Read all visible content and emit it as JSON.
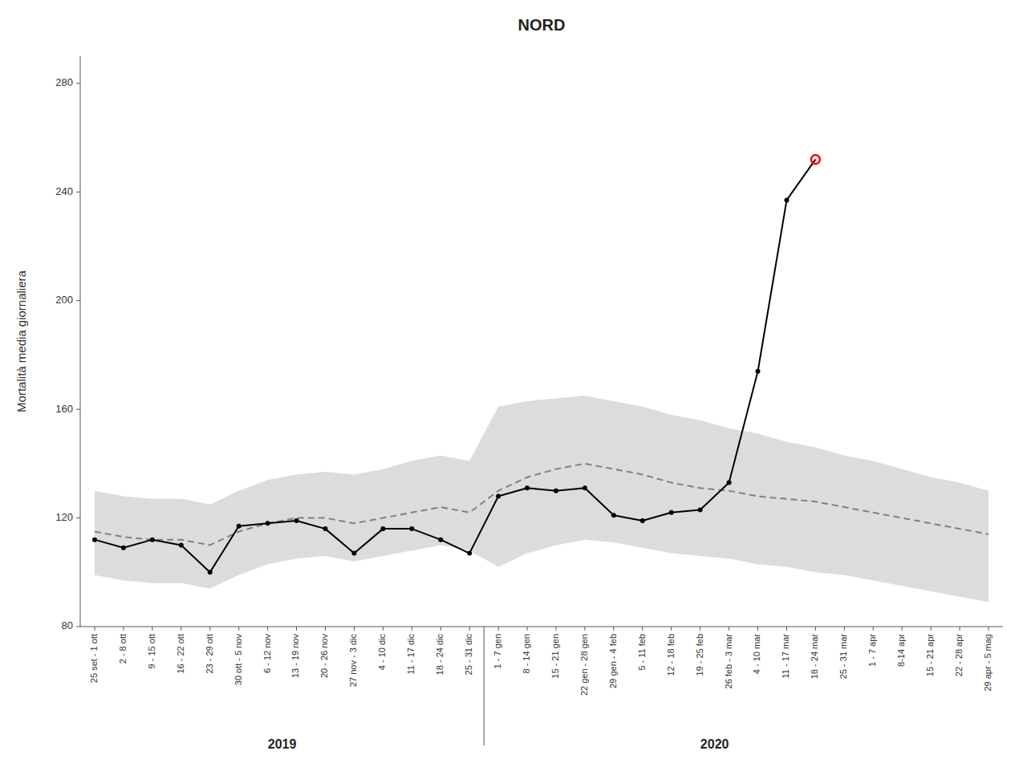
{
  "chart_data": {
    "type": "line",
    "title": "NORD",
    "y_label": "Mortalità media giornaliera",
    "categories": [
      "25 set - 1 ott",
      "2 - 8 ott",
      "9 - 15 ott",
      "16 - 22 ott",
      "23 - 29 ott",
      "30 ott - 5 nov",
      "6 - 12 nov",
      "13 - 19 nov",
      "20 - 26 nov",
      "27 nov - 3 dic",
      "4 - 10 dic",
      "11 - 17 dic",
      "18 - 24 dic",
      "25 - 31 dic",
      "1 - 7 gen",
      "8 - 14 gen",
      "15 - 21 gen",
      "22 gen - 28 gen",
      "29 gen - 4 feb",
      "5 - 11 feb",
      "12 - 18 feb",
      "19 - 25 feb",
      "26 feb - 3 mar",
      "4 - 10 mar",
      "11 - 17 mar",
      "18 - 24 mar",
      "25 - 31 mar",
      "1 - 7 apr",
      "8-14 apr",
      "15 - 21 apr",
      "22 - 28 apr",
      "29 apr - 5 mag"
    ],
    "series": [
      {
        "type": "band",
        "color": "lightgrey",
        "lower": [
          99,
          97,
          96,
          96,
          94,
          99,
          103,
          105,
          106,
          104,
          106,
          108,
          110,
          108,
          102,
          107,
          110,
          112,
          111,
          109,
          107,
          106,
          105,
          103,
          102,
          100,
          99,
          97,
          95,
          93,
          91,
          89
        ],
        "upper": [
          130,
          128,
          127,
          127,
          125,
          130,
          134,
          136,
          137,
          136,
          138,
          141,
          143,
          141,
          161,
          163,
          164,
          165,
          163,
          161,
          158,
          156,
          153,
          151,
          148,
          146,
          143,
          141,
          138,
          135,
          133,
          130
        ]
      },
      {
        "type": "line",
        "color": "grey",
        "line_style": "dashed",
        "values": [
          115,
          113,
          112,
          112,
          110,
          115,
          118,
          120,
          120,
          118,
          120,
          122,
          124,
          122,
          130,
          135,
          138,
          140,
          138,
          136,
          133,
          131,
          130,
          128,
          127,
          126,
          124,
          122,
          120,
          118,
          116,
          114
        ]
      },
      {
        "type": "line",
        "color": "black",
        "line_style": "solid",
        "marker": "circle",
        "values": [
          112,
          109,
          112,
          110,
          100,
          117,
          118,
          119,
          116,
          107,
          116,
          116,
          112,
          107,
          128,
          131,
          130,
          131,
          121,
          119,
          122,
          123,
          133,
          174,
          237,
          252,
          null,
          null,
          null,
          null,
          null,
          null
        ],
        "colors": [
          "black",
          "black",
          "black",
          "black",
          "black",
          "black",
          "black",
          "black",
          "black",
          "black",
          "black",
          "black",
          "black",
          "black",
          "black",
          "black",
          "black",
          "black",
          "black",
          "black",
          "black",
          "black",
          "black",
          "black",
          "black",
          "red",
          null,
          null,
          null,
          null,
          null,
          null
        ]
      }
    ],
    "annotations": [
      {
        "text": "2019",
        "x": 6.5
      },
      {
        "text": "2020",
        "x": 21.5
      }
    ],
    "ylim": [
      80,
      290
    ],
    "yticks": [
      80,
      120,
      160,
      200,
      240,
      280
    ],
    "grid": false
  }
}
